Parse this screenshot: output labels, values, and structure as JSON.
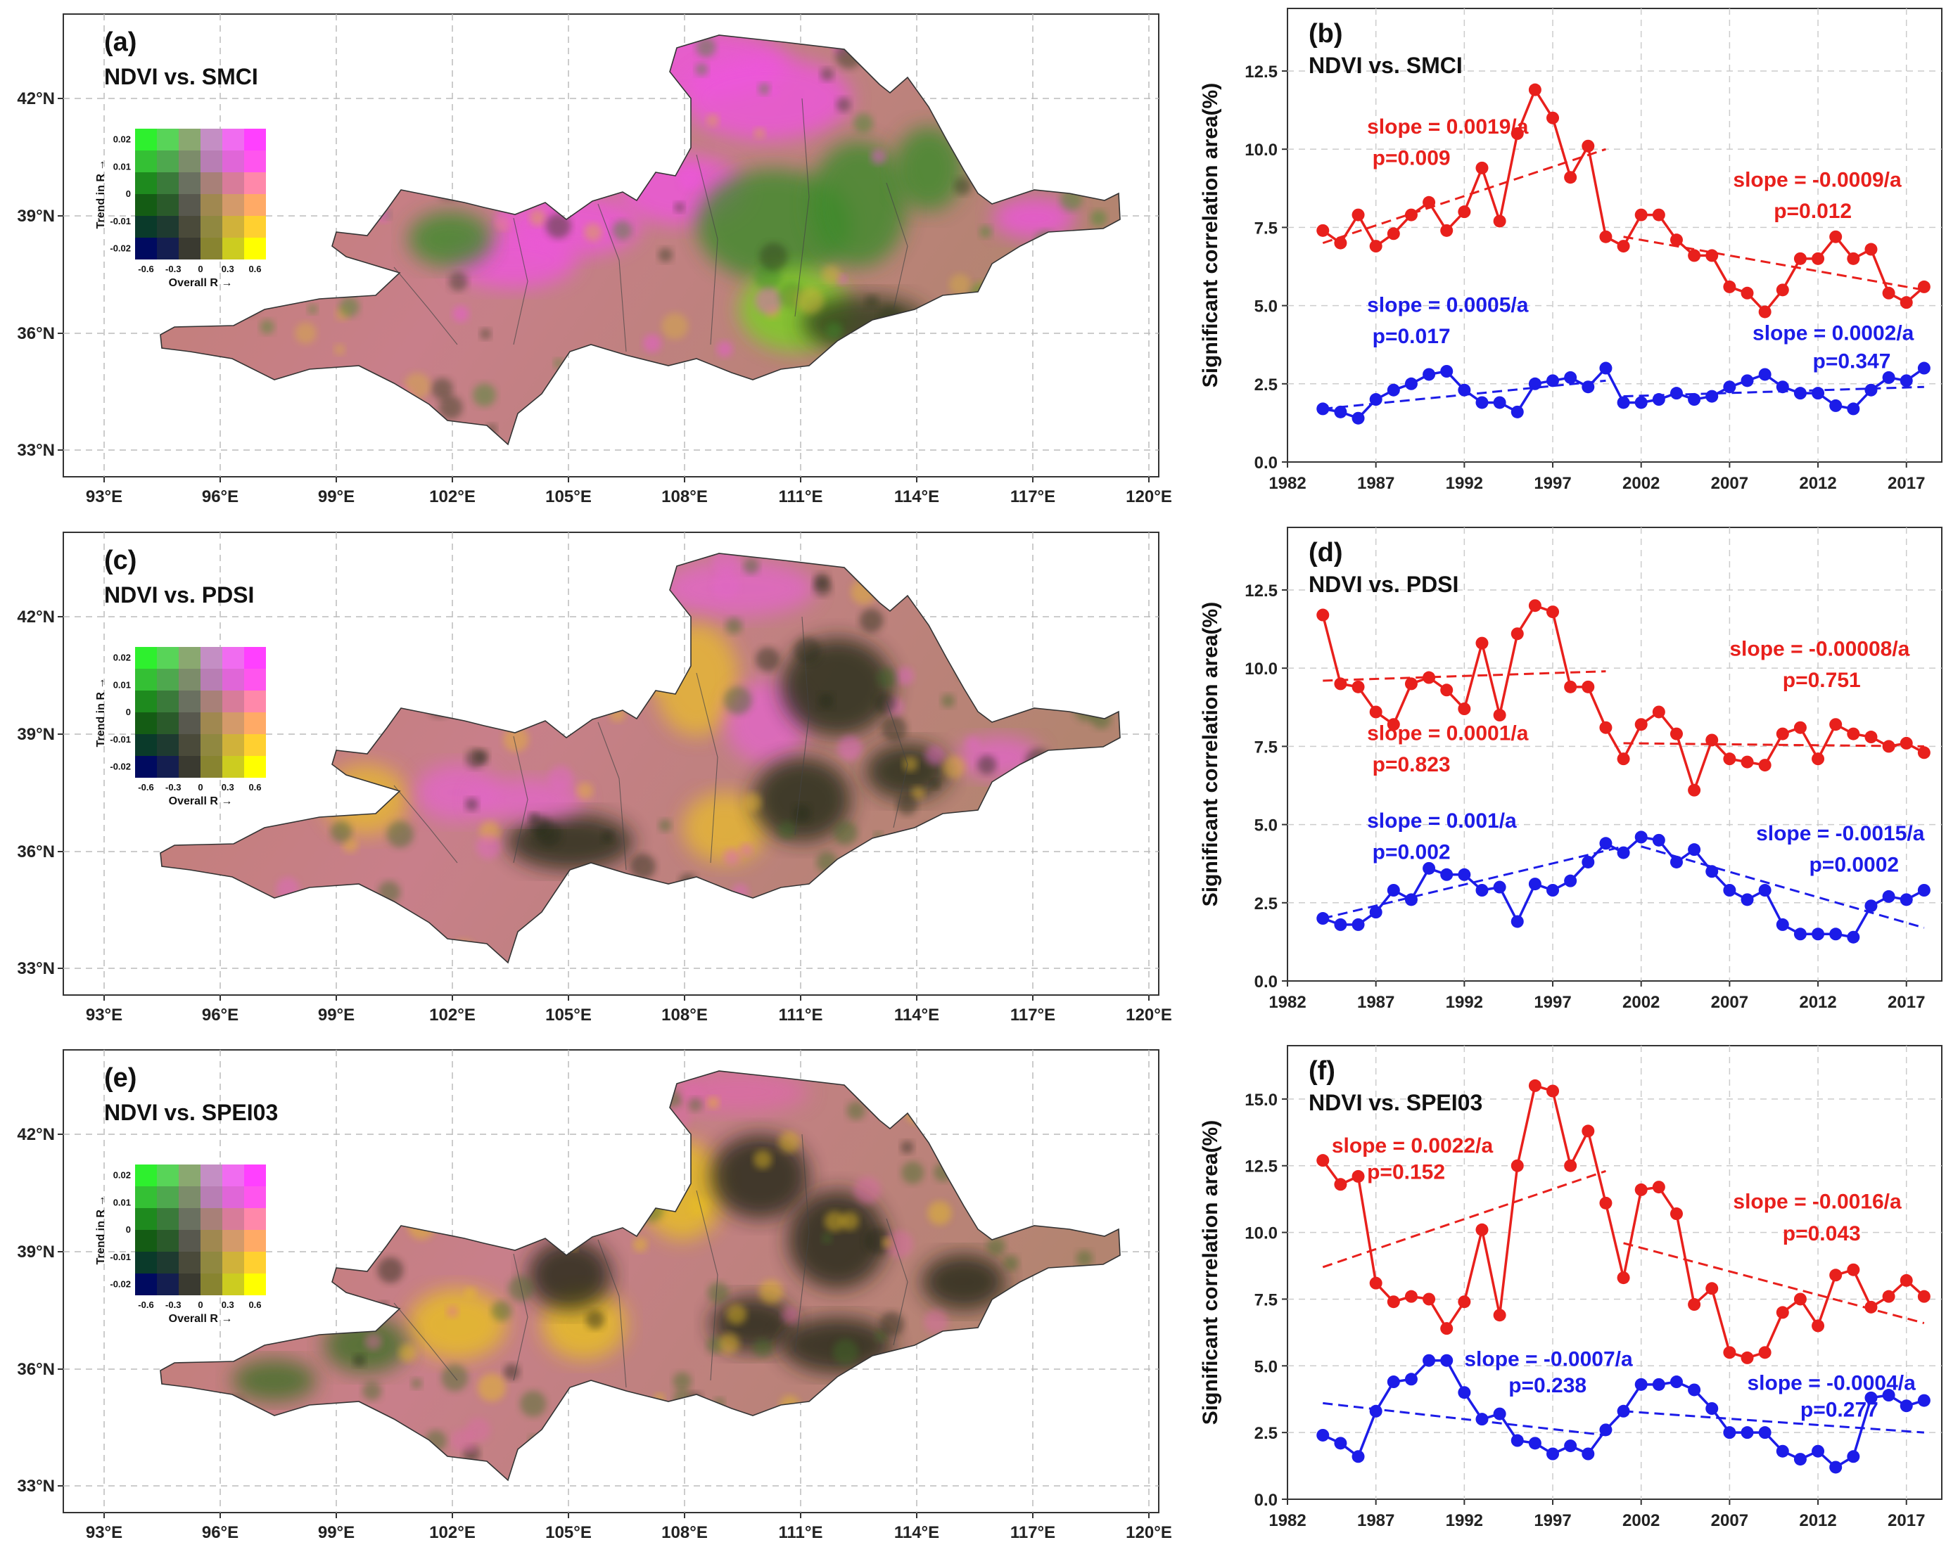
{
  "maps": [
    {
      "label": "(a)",
      "title": "NDVI vs. SMCI",
      "variant": 0
    },
    {
      "label": "(c)",
      "title": "NDVI vs. PDSI",
      "variant": 1
    },
    {
      "label": "(e)",
      "title": "NDVI vs. SPEI03",
      "variant": 2
    }
  ],
  "map_axes": {
    "lon_ticks": [
      "93°E",
      "96°E",
      "99°E",
      "102°E",
      "105°E",
      "108°E",
      "111°E",
      "114°E",
      "117°E",
      "120°E"
    ],
    "lat_ticks": [
      "33°N",
      "36°N",
      "39°N",
      "42°N"
    ]
  },
  "legend": {
    "trend_ticks": [
      "0.02",
      "0.01",
      "0",
      "-0.01",
      "-0.02"
    ],
    "overall_ticks": [
      "-0.6",
      "-0.3",
      "0",
      "0.3",
      "0.6"
    ],
    "ylabel": "Trend in R →",
    "xlabel": "Overall R →",
    "colors": [
      [
        "#2ef02e",
        "#58d458",
        "#8aa870",
        "#c48ec4",
        "#f06cf0",
        "#ff40ff"
      ],
      [
        "#34c034",
        "#4ea84e",
        "#7c8c6a",
        "#b87eb4",
        "#e066d8",
        "#ff55ee"
      ],
      [
        "#1e8a1e",
        "#3a7a3a",
        "#6a7060",
        "#a88078",
        "#d87c9a",
        "#ff88aa"
      ],
      [
        "#145c14",
        "#2a5a2a",
        "#58584e",
        "#a08850",
        "#d49a6a",
        "#ffaa66"
      ],
      [
        "#0a3a2a",
        "#1e3a30",
        "#4a4a3a",
        "#908840",
        "#d0b23a",
        "#ffd030"
      ],
      [
        "#000a60",
        "#141e50",
        "#3a3a30",
        "#888430",
        "#cccc20",
        "#ffff00"
      ]
    ]
  },
  "chart_data": [
    {
      "type": "line",
      "label": "(b)",
      "title": "NDVI vs. SMCI",
      "ylabel": "Significant correlation area(%)",
      "xlim": [
        1982,
        2019
      ],
      "ylim": [
        0,
        14.5
      ],
      "xticks": [
        1982,
        1987,
        1992,
        1997,
        2002,
        2007,
        2012,
        2017
      ],
      "yticks": [
        "0.0",
        "2.5",
        "5.0",
        "7.5",
        "10.0",
        "12.5"
      ],
      "x": [
        1984,
        1985,
        1986,
        1987,
        1988,
        1989,
        1990,
        1991,
        1992,
        1993,
        1994,
        1995,
        1996,
        1997,
        1998,
        1999,
        2000,
        2001,
        2002,
        2003,
        2004,
        2005,
        2006,
        2007,
        2008,
        2009,
        2010,
        2011,
        2012,
        2013,
        2014,
        2015,
        2016,
        2017,
        2018
      ],
      "series": [
        {
          "color": "#e8201c",
          "values": [
            7.4,
            7.0,
            7.9,
            6.9,
            7.3,
            7.9,
            8.3,
            7.4,
            8.0,
            9.4,
            7.7,
            10.5,
            11.9,
            11.0,
            9.1,
            10.1,
            7.2,
            6.9,
            7.9,
            7.9,
            7.1,
            6.6,
            6.6,
            5.6,
            5.4,
            4.8,
            5.5,
            6.5,
            6.5,
            7.2,
            6.5,
            6.8,
            5.4,
            5.1,
            5.6
          ]
        },
        {
          "color": "#1c1ce8",
          "values": [
            1.7,
            1.6,
            1.4,
            2.0,
            2.3,
            2.5,
            2.8,
            2.9,
            2.3,
            1.9,
            1.9,
            1.6,
            2.5,
            2.6,
            2.7,
            2.4,
            3.0,
            1.9,
            1.9,
            2.0,
            2.2,
            2.0,
            2.1,
            2.4,
            2.6,
            2.8,
            2.4,
            2.2,
            2.2,
            1.8,
            1.7,
            2.3,
            2.7,
            2.6,
            3.0
          ]
        }
      ],
      "trends": [
        {
          "color": "#e8201c",
          "x": [
            1984,
            2000
          ],
          "y": [
            7.0,
            10.0
          ]
        },
        {
          "color": "#e8201c",
          "x": [
            2001,
            2018
          ],
          "y": [
            7.2,
            5.5
          ]
        },
        {
          "color": "#1c1ce8",
          "x": [
            1984,
            2000
          ],
          "y": [
            1.7,
            2.6
          ]
        },
        {
          "color": "#1c1ce8",
          "x": [
            2001,
            2018
          ],
          "y": [
            2.1,
            2.4
          ]
        }
      ],
      "annotations": [
        {
          "text": "slope = 0.0019/a",
          "x": 1986.5,
          "y": 10.5,
          "color": "#e8201c"
        },
        {
          "text": "p=0.009",
          "x": 1986.8,
          "y": 9.5,
          "color": "#e8201c"
        },
        {
          "text": "slope = -0.0009/a",
          "x": 2007.2,
          "y": 8.8,
          "color": "#e8201c"
        },
        {
          "text": "p=0.012",
          "x": 2009.5,
          "y": 7.8,
          "color": "#e8201c"
        },
        {
          "text": "slope = 0.0005/a",
          "x": 1986.5,
          "y": 4.8,
          "color": "#1c1ce8"
        },
        {
          "text": "p=0.017",
          "x": 1986.8,
          "y": 3.8,
          "color": "#1c1ce8"
        },
        {
          "text": "slope = 0.0002/a",
          "x": 2008.3,
          "y": 3.9,
          "color": "#1c1ce8"
        },
        {
          "text": "p=0.347",
          "x": 2011.7,
          "y": 3.0,
          "color": "#1c1ce8"
        }
      ]
    },
    {
      "type": "line",
      "label": "(d)",
      "title": "NDVI vs. PDSI",
      "ylabel": "Significant correlation area(%)",
      "xlim": [
        1982,
        2019
      ],
      "ylim": [
        0,
        14.5
      ],
      "xticks": [
        1982,
        1987,
        1992,
        1997,
        2002,
        2007,
        2012,
        2017
      ],
      "yticks": [
        "0.0",
        "2.5",
        "5.0",
        "7.5",
        "10.0",
        "12.5"
      ],
      "x": [
        1984,
        1985,
        1986,
        1987,
        1988,
        1989,
        1990,
        1991,
        1992,
        1993,
        1994,
        1995,
        1996,
        1997,
        1998,
        1999,
        2000,
        2001,
        2002,
        2003,
        2004,
        2005,
        2006,
        2007,
        2008,
        2009,
        2010,
        2011,
        2012,
        2013,
        2014,
        2015,
        2016,
        2017,
        2018
      ],
      "series": [
        {
          "color": "#e8201c",
          "values": [
            11.7,
            9.5,
            9.4,
            8.6,
            8.2,
            9.5,
            9.7,
            9.3,
            8.7,
            10.8,
            8.5,
            11.1,
            12.0,
            11.8,
            9.4,
            9.4,
            8.1,
            7.1,
            8.2,
            8.6,
            7.9,
            6.1,
            7.7,
            7.1,
            7.0,
            6.9,
            7.9,
            8.1,
            7.1,
            8.2,
            7.9,
            7.8,
            7.5,
            7.6,
            7.3
          ]
        },
        {
          "color": "#1c1ce8",
          "values": [
            2.0,
            1.8,
            1.8,
            2.2,
            2.9,
            2.6,
            3.6,
            3.4,
            3.4,
            2.9,
            3.0,
            1.9,
            3.1,
            2.9,
            3.2,
            3.8,
            4.4,
            4.1,
            4.6,
            4.5,
            3.8,
            4.2,
            3.5,
            2.9,
            2.6,
            2.9,
            1.8,
            1.5,
            1.5,
            1.5,
            1.4,
            2.4,
            2.7,
            2.6,
            2.9
          ]
        }
      ],
      "trends": [
        {
          "color": "#e8201c",
          "x": [
            1984,
            2000
          ],
          "y": [
            9.6,
            9.9
          ]
        },
        {
          "color": "#e8201c",
          "x": [
            2001,
            2018
          ],
          "y": [
            7.6,
            7.5
          ]
        },
        {
          "color": "#1c1ce8",
          "x": [
            1984,
            2001
          ],
          "y": [
            2.0,
            4.3
          ]
        },
        {
          "color": "#1c1ce8",
          "x": [
            2002,
            2018
          ],
          "y": [
            4.3,
            1.7
          ]
        }
      ],
      "annotations": [
        {
          "text": "slope = -0.00008/a",
          "x": 2007.0,
          "y": 10.4,
          "color": "#e8201c"
        },
        {
          "text": "p=0.751",
          "x": 2010.0,
          "y": 9.4,
          "color": "#e8201c"
        },
        {
          "text": "slope = 0.0001/a",
          "x": 1986.5,
          "y": 7.7,
          "color": "#e8201c"
        },
        {
          "text": "p=0.823",
          "x": 1986.8,
          "y": 6.7,
          "color": "#e8201c"
        },
        {
          "text": "slope = 0.001/a",
          "x": 1986.5,
          "y": 4.9,
          "color": "#1c1ce8"
        },
        {
          "text": "p=0.002",
          "x": 1986.8,
          "y": 3.9,
          "color": "#1c1ce8"
        },
        {
          "text": "slope = -0.0015/a",
          "x": 2008.5,
          "y": 4.5,
          "color": "#1c1ce8"
        },
        {
          "text": "p=0.0002",
          "x": 2011.5,
          "y": 3.5,
          "color": "#1c1ce8"
        }
      ]
    },
    {
      "type": "line",
      "label": "(f)",
      "title": "NDVI vs. SPEI03",
      "ylabel": "Significant correlation area(%)",
      "xlim": [
        1982,
        2019
      ],
      "ylim": [
        0,
        17.0
      ],
      "xticks": [
        1982,
        1987,
        1992,
        1997,
        2002,
        2007,
        2012,
        2017
      ],
      "yticks": [
        "0.0",
        "2.5",
        "5.0",
        "7.5",
        "10.0",
        "12.5",
        "15.0"
      ],
      "x": [
        1984,
        1985,
        1986,
        1987,
        1988,
        1989,
        1990,
        1991,
        1992,
        1993,
        1994,
        1995,
        1996,
        1997,
        1998,
        1999,
        2000,
        2001,
        2002,
        2003,
        2004,
        2005,
        2006,
        2007,
        2008,
        2009,
        2010,
        2011,
        2012,
        2013,
        2014,
        2015,
        2016,
        2017,
        2018
      ],
      "series": [
        {
          "color": "#e8201c",
          "values": [
            12.7,
            11.8,
            12.1,
            8.1,
            7.4,
            7.6,
            7.5,
            6.4,
            7.4,
            10.1,
            6.9,
            12.5,
            15.5,
            15.3,
            12.5,
            13.8,
            11.1,
            8.3,
            11.6,
            11.7,
            10.7,
            7.3,
            7.9,
            5.5,
            5.3,
            5.5,
            7.0,
            7.5,
            6.5,
            8.4,
            8.6,
            7.2,
            7.6,
            8.2,
            7.6
          ]
        },
        {
          "color": "#1c1ce8",
          "values": [
            2.4,
            2.1,
            1.6,
            3.3,
            4.4,
            4.5,
            5.2,
            5.2,
            4.0,
            3.0,
            3.2,
            2.2,
            2.1,
            1.7,
            2.0,
            1.7,
            2.6,
            3.3,
            4.3,
            4.3,
            4.4,
            4.1,
            3.4,
            2.5,
            2.5,
            2.5,
            1.8,
            1.5,
            1.8,
            1.2,
            1.6,
            3.8,
            3.9,
            3.5,
            3.7
          ]
        }
      ],
      "trends": [
        {
          "color": "#e8201c",
          "x": [
            1984,
            2000
          ],
          "y": [
            8.7,
            12.3
          ]
        },
        {
          "color": "#e8201c",
          "x": [
            2001,
            2018
          ],
          "y": [
            9.6,
            6.6
          ]
        },
        {
          "color": "#1c1ce8",
          "x": [
            1984,
            2000
          ],
          "y": [
            3.6,
            2.4
          ]
        },
        {
          "color": "#1c1ce8",
          "x": [
            2001,
            2018
          ],
          "y": [
            3.3,
            2.5
          ]
        }
      ],
      "annotations": [
        {
          "text": "slope = 0.0022/a",
          "x": 1984.5,
          "y": 13.0,
          "color": "#e8201c"
        },
        {
          "text": "p=0.152",
          "x": 1986.5,
          "y": 12.0,
          "color": "#e8201c"
        },
        {
          "text": "slope = -0.0016/a",
          "x": 2007.2,
          "y": 10.9,
          "color": "#e8201c"
        },
        {
          "text": "p=0.043",
          "x": 2010.0,
          "y": 9.7,
          "color": "#e8201c"
        },
        {
          "text": "slope = -0.0007/a",
          "x": 1992.0,
          "y": 5.0,
          "color": "#1c1ce8"
        },
        {
          "text": "p=0.238",
          "x": 1994.5,
          "y": 4.0,
          "color": "#1c1ce8"
        },
        {
          "text": "slope = -0.0004/a",
          "x": 2008.0,
          "y": 4.1,
          "color": "#1c1ce8"
        },
        {
          "text": "p=0.277",
          "x": 2011.0,
          "y": 3.1,
          "color": "#1c1ce8"
        }
      ]
    }
  ]
}
